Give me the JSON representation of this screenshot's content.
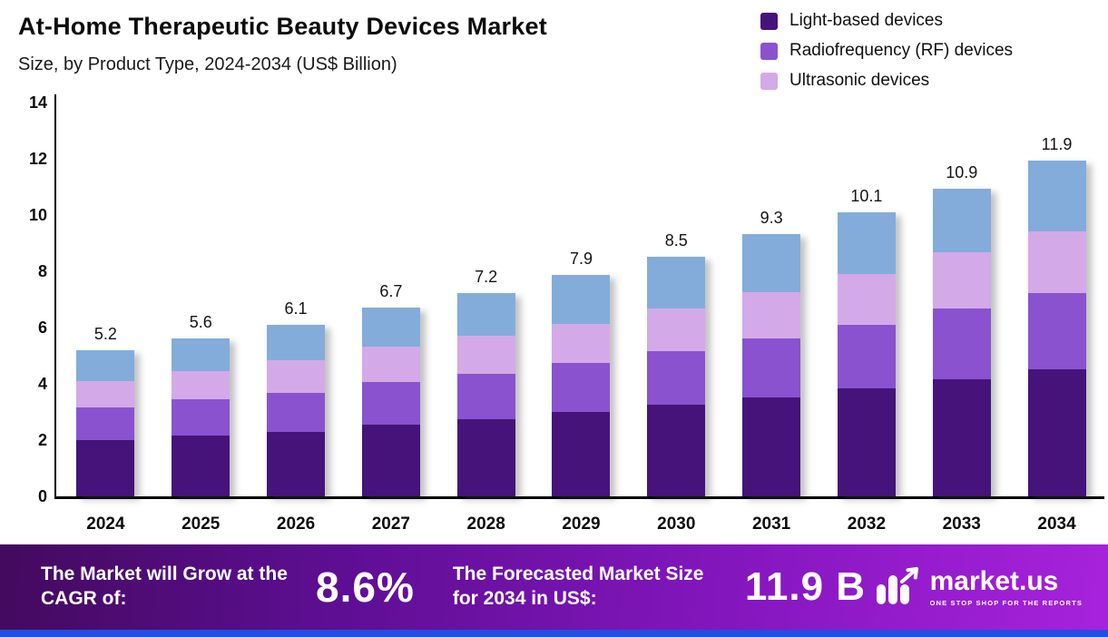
{
  "header": {
    "title": "At-Home Therapeutic Beauty Devices Market",
    "subtitle": "Size, by Product Type, 2024-2034 (US$ Billion)"
  },
  "legend": [
    {
      "label": "Light-based devices",
      "color": "#45137a"
    },
    {
      "label": "Radiofrequency (RF) devices",
      "color": "#8a52ce"
    },
    {
      "label": "Ultrasonic devices",
      "color": "#d4a9e8"
    }
  ],
  "chart_data": {
    "type": "bar",
    "stacked": true,
    "title": "At-Home Therapeutic Beauty Devices Market Size, by Product Type, 2024-2034 (US$ Billion)",
    "categories": [
      "2024",
      "2025",
      "2026",
      "2027",
      "2028",
      "2029",
      "2030",
      "2031",
      "2032",
      "2033",
      "2034"
    ],
    "series": [
      {
        "name": "Light-based devices",
        "color": "#45137a",
        "values": [
          2.0,
          2.15,
          2.3,
          2.55,
          2.75,
          3.0,
          3.25,
          3.5,
          3.85,
          4.15,
          4.5
        ]
      },
      {
        "name": "Radiofrequency (RF) devices",
        "color": "#8a52ce",
        "values": [
          1.15,
          1.3,
          1.4,
          1.5,
          1.6,
          1.75,
          1.9,
          2.1,
          2.25,
          2.5,
          2.7
        ]
      },
      {
        "name": "Ultrasonic devices",
        "color": "#d4a9e8",
        "values": [
          0.95,
          1.0,
          1.15,
          1.25,
          1.35,
          1.4,
          1.5,
          1.65,
          1.8,
          2.0,
          2.2
        ]
      },
      {
        "name": "",
        "color": "#83acdb",
        "values": [
          1.1,
          1.15,
          1.25,
          1.4,
          1.5,
          1.75,
          1.85,
          2.05,
          2.2,
          2.25,
          2.5
        ]
      }
    ],
    "totals": [
      "5.2",
      "5.6",
      "6.1",
      "6.7",
      "7.2",
      "7.9",
      "8.5",
      "9.3",
      "10.1",
      "10.9",
      "11.9"
    ],
    "xlabel": "",
    "ylabel": "",
    "ylim": [
      0,
      14
    ],
    "yticks": [
      0,
      2,
      4,
      6,
      8,
      10,
      12,
      14
    ],
    "grid": false,
    "legend_position": "top-right"
  },
  "banner": {
    "cagr_label": "The Market will Grow at the CAGR of:",
    "cagr_value": "8.6%",
    "forecast_label": "The Forecasted Market Size for 2034 in US$:",
    "forecast_value": "11.9 B",
    "brand": "market.us",
    "brand_tagline": "ONE STOP SHOP FOR THE REPORTS"
  }
}
